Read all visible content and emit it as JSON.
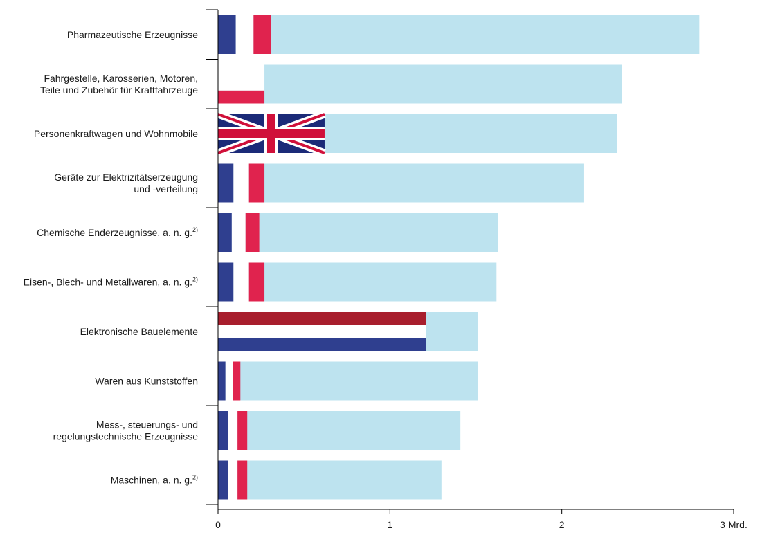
{
  "chart_data": {
    "type": "bar",
    "orientation": "horizontal",
    "categories": [
      "Pharmazeutische Erzeugnisse",
      "Fahrgestelle, Karosserien, Motoren,|Teile und Zubehör für Kraftfahrzeuge",
      "Personenkraftwagen und Wohnmobile",
      "Geräte zur Elektrizitätserzeugung|und -verteilung",
      "Chemische Enderzeugnisse, a. n. g.^2)",
      "Eisen-, Blech- und Metallwaren, a. n. g.^2)",
      "Elektronische Bauelemente",
      "Waren aus Kunststoffen",
      "Mess-, steuerungs- und|regelungstechnische Erzeugnisse",
      "Maschinen, a. n. g.^2)"
    ],
    "series": [
      {
        "values": [
          2.8,
          2.35,
          2.32,
          2.13,
          1.63,
          1.62,
          1.51,
          1.51,
          1.41,
          1.3
        ]
      },
      {
        "values": [
          0.31,
          0.27,
          0.62,
          0.27,
          0.24,
          0.27,
          1.21,
          0.13,
          0.17,
          0.17
        ]
      }
    ],
    "flags": [
      "fr",
      "de",
      "uk",
      "fr",
      "fr",
      "fr",
      "nl",
      "fr",
      "fr",
      "fr"
    ],
    "xlim": [
      0,
      3
    ],
    "xticks": [
      0,
      1,
      2,
      3
    ],
    "xtick_labels": [
      "0",
      "1",
      "2",
      "3 Mrd."
    ],
    "colors": {
      "total": "#bde3ef",
      "blue": "#2f3f8f",
      "red": "#e0234e",
      "white": "#ffffff",
      "dark_red": "#a81e2d",
      "uk_blue": "#1b2a78",
      "uk_red": "#d0103a"
    }
  }
}
